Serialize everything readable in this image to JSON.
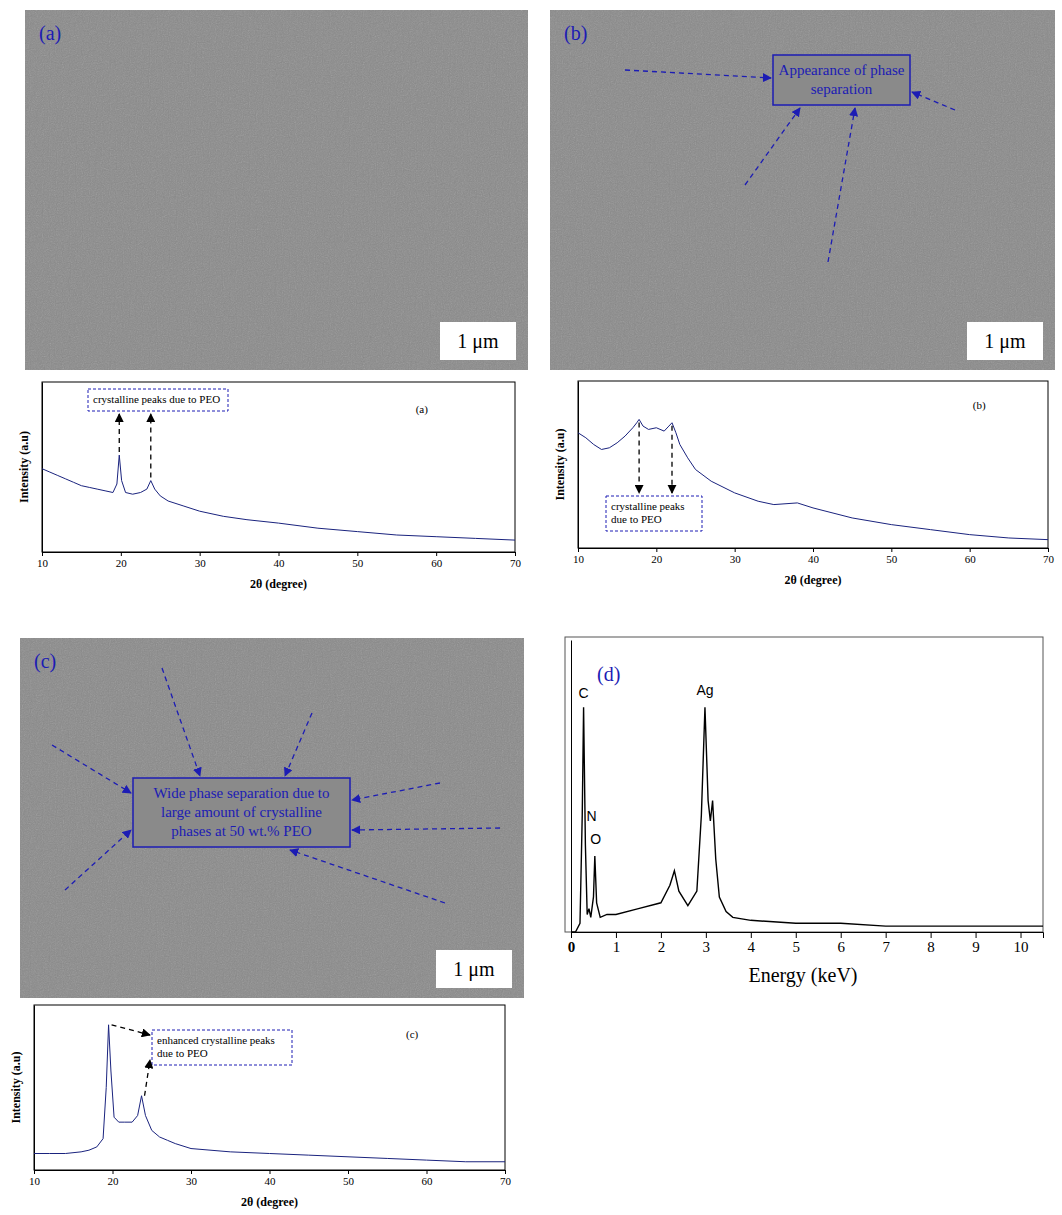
{
  "chart_data": [
    {
      "type": "line",
      "title": "(a)",
      "x_label": "2θ (degree)",
      "y_label": "Intensity (a.u)",
      "xlim": [
        10,
        70
      ],
      "xticks": [
        10,
        20,
        30,
        40,
        50,
        60,
        70
      ],
      "ylim": [
        0,
        100
      ],
      "tick_labels": "x",
      "color": "#1a237e",
      "x": [
        10,
        11,
        12,
        13,
        14,
        15,
        16,
        17,
        18,
        19,
        19.5,
        19.8,
        20.1,
        20.6,
        21.5,
        22.5,
        23.3,
        23.8,
        24.3,
        25,
        26,
        28,
        30,
        33,
        36,
        40,
        45,
        50,
        55,
        60,
        65,
        70
      ],
      "values": [
        49,
        47,
        45,
        43,
        41,
        39,
        38,
        37,
        36,
        35,
        40,
        57,
        42,
        35,
        34,
        35,
        37,
        42,
        37,
        33,
        30,
        27,
        24,
        21,
        19,
        17,
        14,
        12,
        10,
        9,
        8,
        7
      ],
      "annotations": [
        {
          "text": "crystalline peaks due to PEO",
          "x": [
            19.8,
            23.8
          ]
        }
      ]
    },
    {
      "type": "line",
      "title": "(b)",
      "x_label": "2θ (degree)",
      "y_label": "Intensity (a.u)",
      "xlim": [
        10,
        70
      ],
      "xticks": [
        10,
        20,
        30,
        40,
        50,
        60,
        70
      ],
      "ylim": [
        0,
        100
      ],
      "tick_labels": "x",
      "color": "#1a237e",
      "x": [
        10,
        11,
        12,
        13,
        14,
        15,
        16,
        17,
        17.5,
        17.8,
        18.3,
        19,
        20,
        21,
        21.6,
        22,
        22.5,
        23,
        24,
        25,
        27,
        30,
        33,
        35,
        38,
        40,
        45,
        50,
        55,
        60,
        65,
        70
      ],
      "values": [
        69,
        66,
        62,
        59,
        60,
        63,
        67,
        72,
        75,
        77,
        73,
        71,
        72,
        70,
        73,
        75,
        69,
        62,
        54,
        47,
        40,
        33,
        28,
        26,
        27,
        24,
        18,
        14,
        11,
        8,
        6,
        5
      ],
      "annotations": [
        {
          "text": "crystalline peaks due to PEO",
          "x": [
            17.8,
            22
          ]
        }
      ]
    },
    {
      "type": "line",
      "title": "(c)",
      "x_label": "2θ (degree)",
      "y_label": "Intensity (a.u)",
      "xlim": [
        10,
        70
      ],
      "xticks": [
        10,
        20,
        30,
        40,
        50,
        60,
        70
      ],
      "ylim": [
        0,
        100
      ],
      "tick_labels": "x",
      "color": "#1a237e",
      "x": [
        10,
        12,
        14,
        16,
        17,
        18,
        18.8,
        19.2,
        19.5,
        19.8,
        20.2,
        20.8,
        21.5,
        22.5,
        23.2,
        23.7,
        24.2,
        25,
        26,
        27,
        28,
        30,
        35,
        40,
        45,
        50,
        55,
        60,
        65,
        70
      ],
      "values": [
        10,
        10,
        10,
        11,
        12,
        14,
        19,
        50,
        88,
        60,
        32,
        29,
        29,
        29,
        33,
        45,
        33,
        24,
        20,
        18,
        16,
        13,
        11,
        10,
        9,
        8,
        7,
        6,
        5,
        5
      ],
      "annotations": [
        {
          "text": "enhanced crystalline peaks due to PEO",
          "x": [
            19.5,
            23.7
          ]
        }
      ]
    },
    {
      "type": "line",
      "title": "(d)",
      "x_label": "Energy (keV)",
      "xlim": [
        0,
        10.5
      ],
      "xticks": [
        0,
        1,
        2,
        3,
        4,
        5,
        6,
        7,
        8,
        9,
        10
      ],
      "ylim": [
        0,
        100
      ],
      "tick_labels": "x",
      "color": "#000000",
      "x": [
        0,
        0.1,
        0.2,
        0.25,
        0.28,
        0.32,
        0.36,
        0.4,
        0.44,
        0.5,
        0.53,
        0.57,
        0.65,
        0.8,
        1.0,
        1.5,
        2.0,
        2.2,
        2.3,
        2.4,
        2.6,
        2.8,
        2.9,
        2.98,
        3.05,
        3.1,
        3.15,
        3.22,
        3.3,
        3.45,
        3.6,
        4.0,
        5,
        6,
        7,
        8,
        9,
        10,
        10.5
      ],
      "values": [
        0,
        0,
        3,
        40,
        77,
        30,
        6,
        8,
        5,
        12,
        26,
        10,
        5,
        6,
        6,
        8,
        10,
        16,
        21,
        14,
        9,
        14,
        40,
        77,
        45,
        38,
        45,
        25,
        12,
        7,
        5,
        4,
        3,
        3,
        2,
        2,
        2,
        2,
        2
      ],
      "annotations": [
        {
          "text": "C",
          "x": 0.28,
          "y": 80
        },
        {
          "text": "N",
          "x": 0.46,
          "y": 38
        },
        {
          "text": "O",
          "x": 0.55,
          "y": 30
        },
        {
          "text": "Ag",
          "x": 2.98,
          "y": 81
        }
      ]
    }
  ],
  "micrographs": [
    {
      "label": "(a)",
      "scale_bar": "1 μm"
    },
    {
      "label": "(b)",
      "scale_bar": "1 μm",
      "annotation": "Appearance of phase separation"
    },
    {
      "label": "(c)",
      "scale_bar": "1 μm",
      "annotation": "Wide phase separation due to large amount of crystalline phases at 50 wt.% PEO"
    }
  ]
}
